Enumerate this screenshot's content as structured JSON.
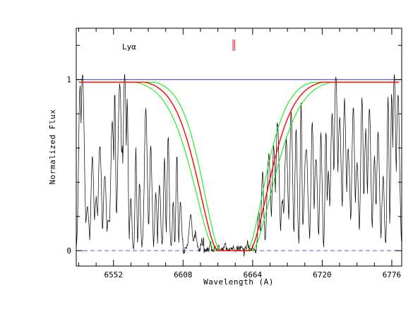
{
  "chart_data": {
    "type": "line",
    "title": "",
    "xlabel": "Wavelength (A)",
    "ylabel": "Normalized Flux",
    "xlim": [
      6522,
      6784
    ],
    "ylim": [
      -0.09,
      1.3
    ],
    "x_ticks": [
      6552,
      6608,
      6664,
      6720,
      6776
    ],
    "y_ticks": [
      0,
      1
    ],
    "x_tick_labels": [
      "6552",
      "6608",
      "6664",
      "6720",
      "6776"
    ],
    "y_tick_labels": [
      "0",
      "1"
    ],
    "grid": false,
    "annotation": {
      "text": "Lyα",
      "x": 6536,
      "y": 1.2
    },
    "marker_lines": [
      6648.2,
      6649.5
    ],
    "continuum": 1,
    "zero_level": 0,
    "absorption_profile": {
      "center": 6648.7,
      "model_halfwidth": 31,
      "model_wings": 50
    },
    "colors": {
      "flux": "#000000",
      "model": "#ff0000",
      "model_bounds": "#00ee00",
      "continuum": "#3838a0",
      "zero_level": "#5a5aff",
      "marker": "#ff0000",
      "axes": "#000000"
    },
    "flux_peaks": [
      [
        6525,
        0.96
      ],
      [
        6527,
        1.03
      ],
      [
        6531,
        0.25
      ],
      [
        6535,
        0.55
      ],
      [
        6538,
        0.3
      ],
      [
        6541,
        0.62
      ],
      [
        6545,
        0.45
      ],
      [
        6548,
        0.18
      ],
      [
        6551,
        0.76
      ],
      [
        6553,
        0.92
      ],
      [
        6557,
        0.98
      ],
      [
        6559,
        0.6
      ],
      [
        6561,
        1.02
      ],
      [
        6563,
        0.88
      ],
      [
        6566,
        0.3
      ],
      [
        6570,
        0.6
      ],
      [
        6573,
        0.4
      ],
      [
        6578,
        0.82
      ],
      [
        6582,
        0.6
      ],
      [
        6586,
        0.35
      ],
      [
        6589,
        0.4
      ],
      [
        6593,
        0.55
      ],
      [
        6596,
        0.67
      ],
      [
        6600,
        0.3
      ],
      [
        6603,
        0.55
      ],
      [
        6606,
        0.3
      ],
      [
        6614,
        0.2
      ],
      [
        6618,
        0.1
      ],
      [
        6623,
        0.06
      ],
      [
        6630,
        0.04
      ],
      [
        6642,
        0.03
      ],
      [
        6660,
        0.05
      ],
      [
        6669,
        0.22
      ],
      [
        6672,
        0.45
      ],
      [
        6675,
        0.1
      ],
      [
        6677,
        0.55
      ],
      [
        6681,
        0.6
      ],
      [
        6684,
        0.75
      ],
      [
        6688,
        0.3
      ],
      [
        6691,
        0.65
      ],
      [
        6695,
        0.82
      ],
      [
        6699,
        0.7
      ],
      [
        6703,
        0.85
      ],
      [
        6707,
        0.6
      ],
      [
        6712,
        0.75
      ],
      [
        6715,
        0.55
      ],
      [
        6719,
        0.68
      ],
      [
        6723,
        0.72
      ],
      [
        6725,
        0.45
      ],
      [
        6728,
        0.82
      ],
      [
        6731,
        1.02
      ],
      [
        6734,
        0.78
      ],
      [
        6738,
        0.88
      ],
      [
        6741,
        0.6
      ],
      [
        6745,
        0.85
      ],
      [
        6748,
        0.5
      ],
      [
        6752,
        0.9
      ],
      [
        6755,
        0.7
      ],
      [
        6758,
        0.82
      ],
      [
        6762,
        0.55
      ],
      [
        6765,
        0.7
      ],
      [
        6769,
        0.45
      ],
      [
        6773,
        0.9
      ],
      [
        6776,
        0.95
      ],
      [
        6778,
        1.03
      ],
      [
        6781,
        0.92
      ]
    ]
  }
}
